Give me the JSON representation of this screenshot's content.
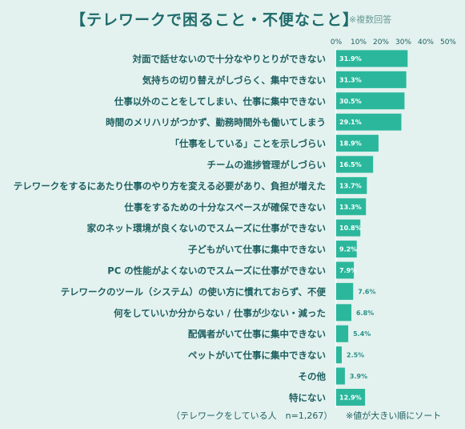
{
  "header": {
    "title": "【テレワークで困ること・不便なこと】",
    "note": "※複数回答"
  },
  "footer": {
    "sample": "（テレワークをしている人　n=1,267）",
    "order_note": "※値が大きい順にソート"
  },
  "colors": {
    "bar": "#2bb79c",
    "text": "#1e5f60",
    "background": "#e3f2ef"
  },
  "chart_data": {
    "type": "bar",
    "orientation": "horizontal",
    "xlim": [
      0,
      50
    ],
    "xticks": [
      "0%",
      "10%",
      "20%",
      "30%",
      "40%",
      "50%"
    ],
    "categories": [
      "対面で話せないので十分なやりとりができない",
      "気持ちの切り替えがしづらく、集中できない",
      "仕事以外のことをしてしまい、仕事に集中できない",
      "時間のメリハリがつかず、勤務時間外も働いてしまう",
      "「仕事をしている」ことを示しづらい",
      "チームの進捗管理がしづらい",
      "テレワークをするにあたり仕事のやり方を変える必要があり、負担が増えた",
      "仕事をするための十分なスペースが確保できない",
      "家のネット環境が良くないのでスムーズに仕事ができない",
      "子どもがいて仕事に集中できない",
      "PC の性能がよくないのでスムーズに仕事ができない",
      "テレワークのツール（システム）の使い方に慣れておらず、不便",
      "何をしていいか分からない / 仕事が少ない・減った",
      "配偶者がいて仕事に集中できない",
      "ペットがいて仕事に集中できない",
      "その他",
      "特にない"
    ],
    "values": [
      31.9,
      31.3,
      30.5,
      29.1,
      18.9,
      16.5,
      13.7,
      13.3,
      10.8,
      9.2,
      7.9,
      7.6,
      6.8,
      5.4,
      2.5,
      3.9,
      12.9
    ],
    "labels": [
      "31.9%",
      "31.3%",
      "30.5%",
      "29.1%",
      "18.9%",
      "16.5%",
      "13.7%",
      "13.3%",
      "10.8%",
      "9.2%",
      "7.9%",
      "7.6%",
      "6.8%",
      "5.4%",
      "2.5%",
      "3.9%",
      "12.9%"
    ]
  }
}
